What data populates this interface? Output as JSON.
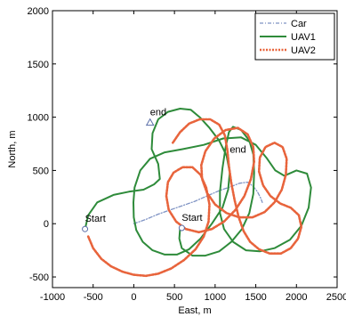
{
  "chart_data": {
    "type": "line",
    "title": "",
    "xlabel": "East, m",
    "ylabel": "North, m",
    "xlim": [
      -1000,
      2500
    ],
    "ylim": [
      -600,
      2000
    ],
    "xticks": [
      -1000,
      -500,
      0,
      500,
      1000,
      1500,
      2000,
      2500
    ],
    "yticks": [
      -500,
      0,
      500,
      1000,
      1500,
      2000
    ],
    "grid": false,
    "legend_position": "top-right",
    "series": [
      {
        "name": "Car",
        "color": "#7f93c4",
        "style": "dash-dot",
        "points": [
          [
            0,
            0
          ],
          [
            150,
            40
          ],
          [
            300,
            90
          ],
          [
            450,
            130
          ],
          [
            600,
            170
          ],
          [
            750,
            210
          ],
          [
            900,
            260
          ],
          [
            1050,
            310
          ],
          [
            1200,
            350
          ],
          [
            1300,
            380
          ],
          [
            1400,
            390
          ],
          [
            1470,
            350
          ],
          [
            1520,
            300
          ],
          [
            1560,
            240
          ],
          [
            1580,
            200
          ]
        ]
      },
      {
        "name": "UAV1",
        "color": "#2e8b3a",
        "style": "solid",
        "points": [
          [
            -600,
            -50
          ],
          [
            -560,
            80
          ],
          [
            -450,
            200
          ],
          [
            -250,
            270
          ],
          [
            -60,
            300
          ],
          [
            120,
            320
          ],
          [
            250,
            370
          ],
          [
            320,
            420
          ],
          [
            300,
            560
          ],
          [
            220,
            700
          ],
          [
            230,
            850
          ],
          [
            300,
            980
          ],
          [
            420,
            1050
          ],
          [
            570,
            1080
          ],
          [
            700,
            1070
          ],
          [
            810,
            1000
          ],
          [
            930,
            900
          ],
          [
            1050,
            780
          ],
          [
            1140,
            640
          ],
          [
            1180,
            480
          ],
          [
            1160,
            320
          ],
          [
            1090,
            150
          ],
          [
            960,
            0
          ],
          [
            820,
            -140
          ],
          [
            680,
            -240
          ],
          [
            530,
            -290
          ],
          [
            380,
            -290
          ],
          [
            230,
            -250
          ],
          [
            110,
            -170
          ],
          [
            30,
            -60
          ],
          [
            0,
            60
          ],
          [
            -5,
            200
          ],
          [
            10,
            340
          ],
          [
            80,
            500
          ],
          [
            200,
            610
          ],
          [
            380,
            670
          ],
          [
            600,
            700
          ],
          [
            860,
            740
          ],
          [
            1100,
            800
          ],
          [
            1320,
            810
          ],
          [
            1500,
            740
          ],
          [
            1630,
            620
          ],
          [
            1740,
            500
          ],
          [
            1850,
            450
          ],
          [
            2000,
            500
          ],
          [
            2130,
            470
          ],
          [
            2180,
            340
          ],
          [
            2150,
            150
          ],
          [
            2060,
            -20
          ],
          [
            1920,
            -150
          ],
          [
            1730,
            -230
          ],
          [
            1550,
            -260
          ],
          [
            1380,
            -250
          ],
          [
            1220,
            -170
          ],
          [
            1110,
            -50
          ],
          [
            1060,
            100
          ],
          [
            1060,
            300
          ],
          [
            1090,
            520
          ],
          [
            1130,
            720
          ],
          [
            1170,
            860
          ],
          [
            1220,
            910
          ],
          [
            1320,
            880
          ],
          [
            1420,
            780
          ],
          [
            1470,
            650
          ],
          [
            1480,
            480
          ],
          [
            1470,
            280
          ],
          [
            1420,
            100
          ],
          [
            1330,
            -50
          ],
          [
            1200,
            -170
          ],
          [
            1050,
            -260
          ],
          [
            880,
            -300
          ],
          [
            720,
            -300
          ],
          [
            590,
            -230
          ],
          [
            560,
            -140
          ],
          [
            570,
            -40
          ]
        ]
      },
      {
        "name": "UAV2",
        "color": "#e8643c",
        "style": "dotted",
        "points": [
          [
            -560,
            -120
          ],
          [
            -500,
            -230
          ],
          [
            -400,
            -330
          ],
          [
            -280,
            -400
          ],
          [
            -140,
            -450
          ],
          [
            0,
            -480
          ],
          [
            150,
            -490
          ],
          [
            300,
            -470
          ],
          [
            460,
            -420
          ],
          [
            620,
            -340
          ],
          [
            760,
            -240
          ],
          [
            860,
            -120
          ],
          [
            920,
            20
          ],
          [
            930,
            180
          ],
          [
            890,
            340
          ],
          [
            820,
            460
          ],
          [
            720,
            530
          ],
          [
            600,
            530
          ],
          [
            490,
            480
          ],
          [
            420,
            390
          ],
          [
            400,
            260
          ],
          [
            430,
            130
          ],
          [
            520,
            20
          ],
          [
            640,
            -50
          ],
          [
            800,
            -80
          ],
          [
            960,
            -50
          ],
          [
            1110,
            20
          ],
          [
            1250,
            130
          ],
          [
            1360,
            260
          ],
          [
            1440,
            420
          ],
          [
            1480,
            580
          ],
          [
            1470,
            720
          ],
          [
            1400,
            840
          ],
          [
            1280,
            900
          ],
          [
            1130,
            880
          ],
          [
            990,
            800
          ],
          [
            880,
            680
          ],
          [
            830,
            550
          ],
          [
            840,
            420
          ],
          [
            900,
            290
          ],
          [
            1000,
            180
          ],
          [
            1140,
            100
          ],
          [
            1300,
            60
          ],
          [
            1460,
            60
          ],
          [
            1610,
            110
          ],
          [
            1730,
            200
          ],
          [
            1820,
            320
          ],
          [
            1870,
            460
          ],
          [
            1880,
            610
          ],
          [
            1830,
            720
          ],
          [
            1730,
            760
          ],
          [
            1620,
            720
          ],
          [
            1550,
            620
          ],
          [
            1540,
            490
          ],
          [
            1590,
            360
          ],
          [
            1680,
            260
          ],
          [
            1800,
            190
          ],
          [
            1930,
            150
          ],
          [
            2030,
            80
          ],
          [
            2060,
            -30
          ],
          [
            2020,
            -140
          ],
          [
            1930,
            -230
          ],
          [
            1810,
            -280
          ],
          [
            1670,
            -280
          ],
          [
            1540,
            -240
          ],
          [
            1430,
            -170
          ],
          [
            1350,
            -70
          ],
          [
            1290,
            60
          ],
          [
            1240,
            220
          ],
          [
            1200,
            380
          ],
          [
            1170,
            540
          ],
          [
            1150,
            690
          ],
          [
            1120,
            830
          ],
          [
            1050,
            930
          ],
          [
            940,
            980
          ],
          [
            810,
            980
          ],
          [
            680,
            940
          ],
          [
            570,
            860
          ],
          [
            480,
            760
          ]
        ]
      }
    ],
    "annotations": [
      {
        "text": "Start",
        "x": -600,
        "y": -50,
        "marker": "circle"
      },
      {
        "text": "Start",
        "x": 590,
        "y": -40,
        "marker": "circle"
      },
      {
        "text": "end",
        "x": 200,
        "y": 950,
        "marker": "triangle"
      },
      {
        "text": "end",
        "x": 1180,
        "y": 600,
        "marker": "none"
      }
    ]
  }
}
